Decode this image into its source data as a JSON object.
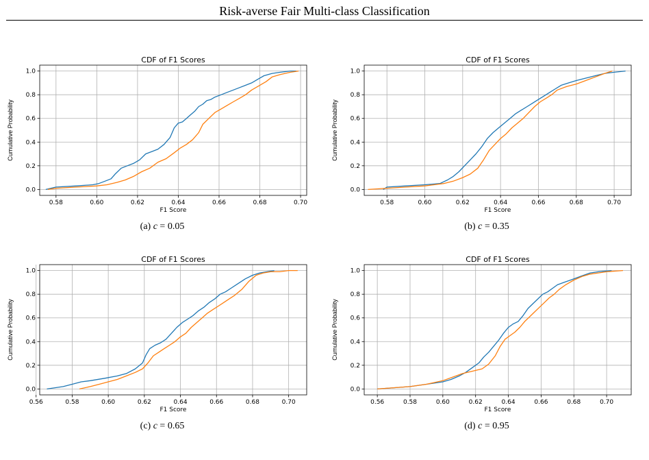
{
  "header": {
    "title": "Risk-averse Fair Multi-class Classification"
  },
  "colors": {
    "series_blue": "#1f77b4",
    "series_orange": "#ff7f0e",
    "grid": "#b0b0b0"
  },
  "chart_data": [
    {
      "type": "line",
      "title": "CDF of F1 Scores",
      "xlabel": "F1 Score",
      "ylabel": "Cumulative Probability",
      "xlim": [
        0.572,
        0.703
      ],
      "ylim": [
        -0.05,
        1.05
      ],
      "xticks": [
        "0.58",
        "0.60",
        "0.62",
        "0.64",
        "0.66",
        "0.68",
        "0.70"
      ],
      "yticks": [
        "0.0",
        "0.2",
        "0.4",
        "0.6",
        "0.8",
        "1.0"
      ],
      "grid": true,
      "caption": {
        "label": "(a)",
        "variable": "c",
        "value": "= 0.05"
      },
      "series": [
        {
          "x": [
            0.575,
            0.58,
            0.59,
            0.598,
            0.601,
            0.604,
            0.607,
            0.609,
            0.612,
            0.615,
            0.618,
            0.621,
            0.624,
            0.627,
            0.63,
            0.633,
            0.636,
            0.638,
            0.64,
            0.642,
            0.644,
            0.646,
            0.648,
            0.65,
            0.652,
            0.654,
            0.656,
            0.658,
            0.661,
            0.664,
            0.667,
            0.67,
            0.673,
            0.676,
            0.679,
            0.682,
            0.686,
            0.69,
            0.695,
            0.698
          ],
          "y": [
            0.0,
            0.02,
            0.03,
            0.04,
            0.05,
            0.07,
            0.09,
            0.13,
            0.18,
            0.2,
            0.22,
            0.25,
            0.3,
            0.32,
            0.34,
            0.38,
            0.44,
            0.52,
            0.56,
            0.57,
            0.6,
            0.63,
            0.66,
            0.7,
            0.72,
            0.75,
            0.76,
            0.78,
            0.8,
            0.82,
            0.84,
            0.86,
            0.88,
            0.9,
            0.93,
            0.96,
            0.98,
            0.99,
            1.0,
            1.0
          ]
        },
        {
          "x": [
            0.576,
            0.58,
            0.59,
            0.6,
            0.605,
            0.61,
            0.614,
            0.618,
            0.622,
            0.626,
            0.63,
            0.634,
            0.638,
            0.641,
            0.644,
            0.647,
            0.65,
            0.652,
            0.655,
            0.658,
            0.661,
            0.664,
            0.667,
            0.67,
            0.673,
            0.676,
            0.68,
            0.683,
            0.686,
            0.69,
            0.695,
            0.699
          ],
          "y": [
            0.0,
            0.01,
            0.02,
            0.03,
            0.04,
            0.06,
            0.08,
            0.11,
            0.15,
            0.18,
            0.23,
            0.26,
            0.31,
            0.35,
            0.38,
            0.42,
            0.48,
            0.55,
            0.6,
            0.65,
            0.68,
            0.71,
            0.74,
            0.77,
            0.8,
            0.84,
            0.88,
            0.91,
            0.95,
            0.97,
            0.99,
            1.0
          ]
        }
      ]
    },
    {
      "type": "line",
      "title": "CDF of F1 Scores",
      "xlabel": "F1 Score",
      "ylabel": "Cumulative Probability",
      "xlim": [
        0.568,
        0.709
      ],
      "ylim": [
        -0.05,
        1.05
      ],
      "xticks": [
        "0.58",
        "0.60",
        "0.62",
        "0.64",
        "0.66",
        "0.68",
        "0.70"
      ],
      "yticks": [
        "0.0",
        "0.2",
        "0.4",
        "0.6",
        "0.8",
        "1.0"
      ],
      "grid": true,
      "caption": {
        "label": "(b)",
        "variable": "c",
        "value": "= 0.35"
      },
      "series": [
        {
          "x": [
            0.578,
            0.58,
            0.59,
            0.6,
            0.608,
            0.612,
            0.615,
            0.618,
            0.621,
            0.624,
            0.627,
            0.63,
            0.633,
            0.636,
            0.639,
            0.642,
            0.645,
            0.648,
            0.651,
            0.654,
            0.657,
            0.66,
            0.663,
            0.666,
            0.669,
            0.672,
            0.676,
            0.68,
            0.685,
            0.69,
            0.695,
            0.7,
            0.706
          ],
          "y": [
            0.0,
            0.02,
            0.03,
            0.04,
            0.05,
            0.08,
            0.11,
            0.15,
            0.2,
            0.25,
            0.3,
            0.36,
            0.43,
            0.48,
            0.52,
            0.56,
            0.6,
            0.64,
            0.67,
            0.7,
            0.73,
            0.76,
            0.79,
            0.82,
            0.85,
            0.88,
            0.9,
            0.92,
            0.94,
            0.96,
            0.98,
            0.99,
            1.0
          ]
        },
        {
          "x": [
            0.57,
            0.58,
            0.59,
            0.6,
            0.61,
            0.615,
            0.62,
            0.624,
            0.628,
            0.631,
            0.634,
            0.637,
            0.64,
            0.643,
            0.646,
            0.649,
            0.652,
            0.655,
            0.658,
            0.661,
            0.664,
            0.667,
            0.67,
            0.675,
            0.68,
            0.685,
            0.69,
            0.695,
            0.699
          ],
          "y": [
            0.0,
            0.01,
            0.02,
            0.03,
            0.05,
            0.07,
            0.1,
            0.13,
            0.18,
            0.25,
            0.33,
            0.38,
            0.43,
            0.47,
            0.52,
            0.56,
            0.6,
            0.65,
            0.7,
            0.74,
            0.77,
            0.8,
            0.84,
            0.87,
            0.89,
            0.92,
            0.95,
            0.98,
            1.0
          ]
        }
      ]
    },
    {
      "type": "line",
      "title": "CDF of F1 Scores",
      "xlabel": "F1 Score",
      "ylabel": "Cumulative Probability",
      "xlim": [
        0.562,
        0.71
      ],
      "ylim": [
        -0.05,
        1.05
      ],
      "xticks": [
        "0.56",
        "0.58",
        "0.60",
        "0.62",
        "0.64",
        "0.66",
        "0.68",
        "0.70"
      ],
      "yticks": [
        "0.0",
        "0.2",
        "0.4",
        "0.6",
        "0.8",
        "1.0"
      ],
      "grid": true,
      "caption": {
        "label": "(c)",
        "variable": "c",
        "value": "= 0.65"
      },
      "series": [
        {
          "x": [
            0.566,
            0.575,
            0.58,
            0.585,
            0.59,
            0.598,
            0.605,
            0.61,
            0.615,
            0.619,
            0.621,
            0.623,
            0.626,
            0.629,
            0.632,
            0.635,
            0.638,
            0.641,
            0.644,
            0.647,
            0.65,
            0.653,
            0.656,
            0.659,
            0.662,
            0.665,
            0.668,
            0.672,
            0.676,
            0.68,
            0.684,
            0.688,
            0.692
          ],
          "y": [
            0.0,
            0.02,
            0.04,
            0.06,
            0.07,
            0.09,
            0.11,
            0.13,
            0.17,
            0.22,
            0.29,
            0.34,
            0.37,
            0.39,
            0.42,
            0.47,
            0.52,
            0.56,
            0.59,
            0.62,
            0.66,
            0.69,
            0.73,
            0.76,
            0.8,
            0.82,
            0.85,
            0.89,
            0.93,
            0.96,
            0.98,
            0.99,
            1.0
          ]
        },
        {
          "x": [
            0.584,
            0.59,
            0.595,
            0.6,
            0.605,
            0.61,
            0.615,
            0.619,
            0.622,
            0.625,
            0.628,
            0.631,
            0.634,
            0.637,
            0.64,
            0.643,
            0.646,
            0.649,
            0.652,
            0.655,
            0.658,
            0.661,
            0.664,
            0.667,
            0.67,
            0.674,
            0.678,
            0.682,
            0.686,
            0.69,
            0.695,
            0.7,
            0.705
          ],
          "y": [
            0.0,
            0.02,
            0.04,
            0.06,
            0.08,
            0.11,
            0.14,
            0.17,
            0.22,
            0.28,
            0.31,
            0.34,
            0.37,
            0.4,
            0.44,
            0.47,
            0.52,
            0.56,
            0.6,
            0.64,
            0.67,
            0.7,
            0.73,
            0.76,
            0.79,
            0.84,
            0.91,
            0.96,
            0.98,
            0.99,
            0.99,
            1.0,
            1.0
          ]
        }
      ]
    },
    {
      "type": "line",
      "title": "CDF of F1 Scores",
      "xlabel": "F1 Score",
      "ylabel": "Cumulative Probability",
      "xlim": [
        0.552,
        0.715
      ],
      "ylim": [
        -0.05,
        1.05
      ],
      "xticks": [
        "0.56",
        "0.58",
        "0.60",
        "0.62",
        "0.64",
        "0.66",
        "0.68",
        "0.70"
      ],
      "yticks": [
        "0.0",
        "0.2",
        "0.4",
        "0.6",
        "0.8",
        "1.0"
      ],
      "grid": true,
      "caption": {
        "label": "(d)",
        "variable": "c",
        "value": "= 0.95"
      },
      "series": [
        {
          "x": [
            0.56,
            0.57,
            0.58,
            0.59,
            0.6,
            0.605,
            0.61,
            0.614,
            0.618,
            0.622,
            0.625,
            0.628,
            0.631,
            0.634,
            0.637,
            0.64,
            0.643,
            0.646,
            0.649,
            0.652,
            0.655,
            0.658,
            0.661,
            0.664,
            0.667,
            0.67,
            0.674,
            0.678,
            0.682,
            0.686,
            0.69,
            0.695,
            0.703
          ],
          "y": [
            0.0,
            0.01,
            0.02,
            0.04,
            0.06,
            0.08,
            0.11,
            0.14,
            0.18,
            0.22,
            0.27,
            0.31,
            0.36,
            0.41,
            0.47,
            0.52,
            0.55,
            0.57,
            0.62,
            0.68,
            0.72,
            0.76,
            0.8,
            0.82,
            0.85,
            0.88,
            0.9,
            0.92,
            0.94,
            0.96,
            0.98,
            0.99,
            1.0
          ]
        },
        {
          "x": [
            0.56,
            0.57,
            0.58,
            0.59,
            0.6,
            0.606,
            0.612,
            0.618,
            0.624,
            0.628,
            0.632,
            0.635,
            0.638,
            0.641,
            0.644,
            0.647,
            0.65,
            0.653,
            0.656,
            0.659,
            0.662,
            0.665,
            0.668,
            0.671,
            0.675,
            0.68,
            0.685,
            0.69,
            0.695,
            0.7,
            0.705,
            0.71
          ],
          "y": [
            0.0,
            0.01,
            0.02,
            0.04,
            0.07,
            0.1,
            0.13,
            0.15,
            0.17,
            0.21,
            0.28,
            0.36,
            0.42,
            0.45,
            0.48,
            0.52,
            0.57,
            0.61,
            0.65,
            0.69,
            0.73,
            0.77,
            0.8,
            0.84,
            0.88,
            0.92,
            0.95,
            0.97,
            0.98,
            0.99,
            0.995,
            1.0
          ]
        }
      ]
    }
  ]
}
